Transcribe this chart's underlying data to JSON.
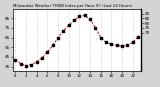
{
  "hours": [
    0,
    1,
    2,
    3,
    4,
    5,
    6,
    7,
    8,
    9,
    10,
    11,
    12,
    13,
    14,
    15,
    16,
    17,
    18,
    19,
    20,
    21,
    22,
    23
  ],
  "values": [
    42,
    38,
    36,
    37,
    40,
    44,
    50,
    57,
    65,
    72,
    78,
    83,
    87,
    88,
    84,
    75,
    65,
    60,
    58,
    57,
    56,
    57,
    60,
    66
  ],
  "line_color": "#dd0000",
  "marker_color": "#000000",
  "background_color": "#d4d4d4",
  "plot_background": "#ffffff",
  "grid_color": "#888888",
  "title": "Milwaukee Weather THSW Index per Hour (F) (Last 24 Hours)",
  "ylim": [
    30,
    95
  ],
  "yticks": [
    35,
    45,
    55,
    65,
    75,
    85
  ],
  "ytick_labels": [
    "35",
    "45",
    "55",
    "65",
    "75",
    "85"
  ],
  "xtick_positions": [
    0,
    2,
    4,
    6,
    8,
    10,
    12,
    14,
    16,
    18,
    20,
    22
  ],
  "xtick_labels": [
    "0",
    "2",
    "4",
    "6",
    "8",
    "10",
    "12",
    "14",
    "16",
    "18",
    "20",
    "22"
  ],
  "right_ylim_labels": [
    "70",
    "75",
    "80",
    "85",
    "90"
  ],
  "right_ylim_values": [
    70,
    75,
    80,
    85,
    90
  ]
}
